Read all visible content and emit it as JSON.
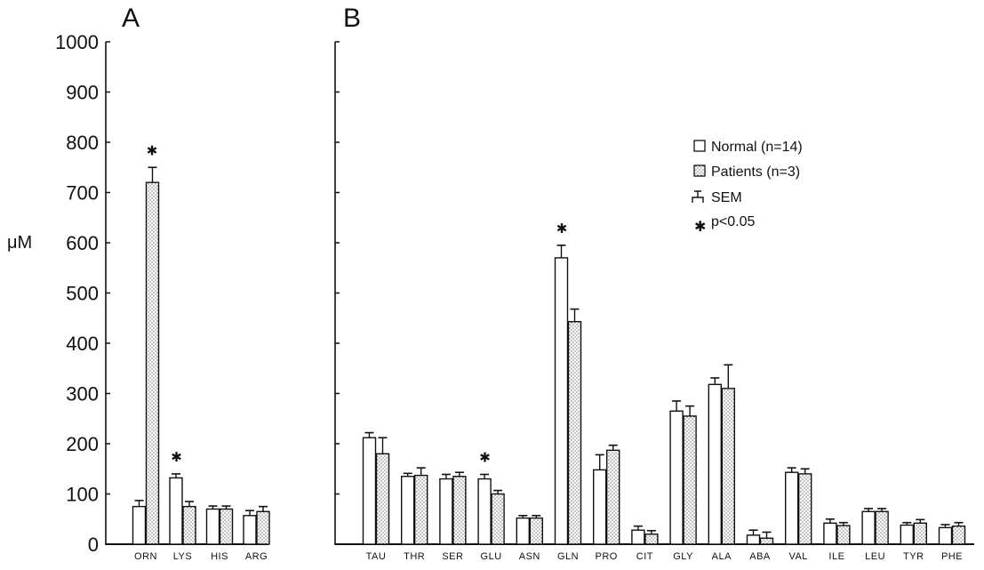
{
  "chart_data": [
    {
      "panel_label": "A",
      "type": "bar",
      "ylabel": "μM",
      "ylim": [
        0,
        1000
      ],
      "yticks": [
        0,
        100,
        200,
        300,
        400,
        500,
        600,
        700,
        800,
        900,
        1000
      ],
      "categories": [
        "ORN",
        "LYS",
        "HIS",
        "ARG"
      ],
      "series": [
        {
          "name": "Normal (n=14)",
          "values": [
            75,
            132,
            70,
            57
          ],
          "sem": [
            12,
            8,
            6,
            10
          ],
          "fill": "open"
        },
        {
          "name": "Patients (n=3)",
          "values": [
            720,
            75,
            70,
            65
          ],
          "sem": [
            30,
            10,
            6,
            10
          ],
          "fill": "dotted"
        }
      ],
      "significant": [
        {
          "category": "ORN",
          "series": 1
        },
        {
          "category": "LYS",
          "series": 0
        }
      ]
    },
    {
      "panel_label": "B",
      "type": "bar",
      "ylim": [
        0,
        1000
      ],
      "yticks": [
        0,
        100,
        200,
        300,
        400,
        500,
        600,
        700,
        800,
        900,
        1000
      ],
      "categories": [
        "TAU",
        "THR",
        "SER",
        "GLU",
        "ASN",
        "GLN",
        "PRO",
        "CIT",
        "GLY",
        "ALA",
        "ABA",
        "VAL",
        "ILE",
        "LEU",
        "TYR",
        "PHE"
      ],
      "series": [
        {
          "name": "Normal (n=14)",
          "values": [
            212,
            135,
            130,
            130,
            52,
            570,
            148,
            28,
            265,
            318,
            18,
            143,
            42,
            65,
            38,
            33
          ],
          "sem": [
            10,
            6,
            9,
            9,
            5,
            25,
            30,
            8,
            20,
            13,
            10,
            9,
            8,
            6,
            5,
            6
          ],
          "fill": "open"
        },
        {
          "name": "Patients (n=3)",
          "values": [
            180,
            137,
            135,
            100,
            52,
            443,
            187,
            20,
            255,
            310,
            12,
            140,
            37,
            65,
            42,
            36
          ],
          "sem": [
            32,
            15,
            8,
            7,
            5,
            25,
            10,
            7,
            20,
            47,
            12,
            10,
            6,
            6,
            7,
            7
          ],
          "fill": "dotted"
        }
      ],
      "significant": [
        {
          "category": "GLU",
          "series": 0
        },
        {
          "category": "GLN",
          "series": 0
        }
      ]
    }
  ],
  "legend": {
    "placement": "top-right",
    "entries": [
      "Normal (n=14)",
      "Patients (n=3)",
      "SEM",
      "p<0.05"
    ]
  },
  "colors": {
    "ink": "#111111",
    "background": "#ffffff"
  }
}
